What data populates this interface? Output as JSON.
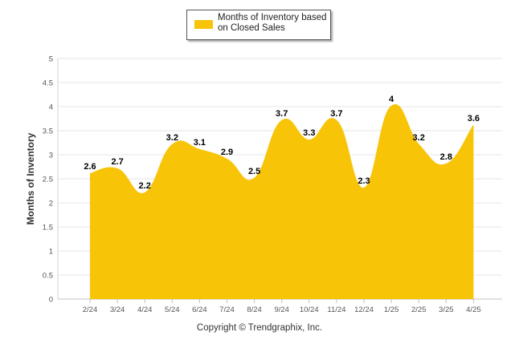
{
  "chart_data": {
    "type": "area",
    "categories": [
      "2/24",
      "3/24",
      "4/24",
      "5/24",
      "6/24",
      "7/24",
      "8/24",
      "9/24",
      "10/24",
      "11/24",
      "12/24",
      "1/25",
      "2/25",
      "3/25",
      "4/25"
    ],
    "series": [
      {
        "name": "Months of Inventory based on Closed Sales",
        "values": [
          2.6,
          2.7,
          2.2,
          3.2,
          3.1,
          2.9,
          2.5,
          3.7,
          3.3,
          3.7,
          2.3,
          4,
          3.2,
          2.8,
          3.6
        ],
        "labels": [
          "2.6",
          "2.7",
          "2.2",
          "3.2",
          "3.1",
          "2.9",
          "2.5",
          "3.7",
          "3.3",
          "3.7",
          "2.3",
          "4",
          "3.2",
          "2.8",
          "3.6"
        ],
        "color": "#f7c408"
      }
    ],
    "ylabel": "Months of Inventory",
    "xlabel": "",
    "ylim": [
      0,
      5
    ],
    "yticks": [
      "0",
      "0.5",
      "1",
      "1.5",
      "2",
      "2.5",
      "3",
      "3.5",
      "4",
      "4.5",
      "5"
    ],
    "grid": true,
    "legend": "top-center"
  },
  "legend": {
    "text_line1": "Months of Inventory based",
    "text_line2": "on Closed Sales"
  },
  "footer": {
    "copyright": "Copyright © Trendgraphix, Inc."
  }
}
